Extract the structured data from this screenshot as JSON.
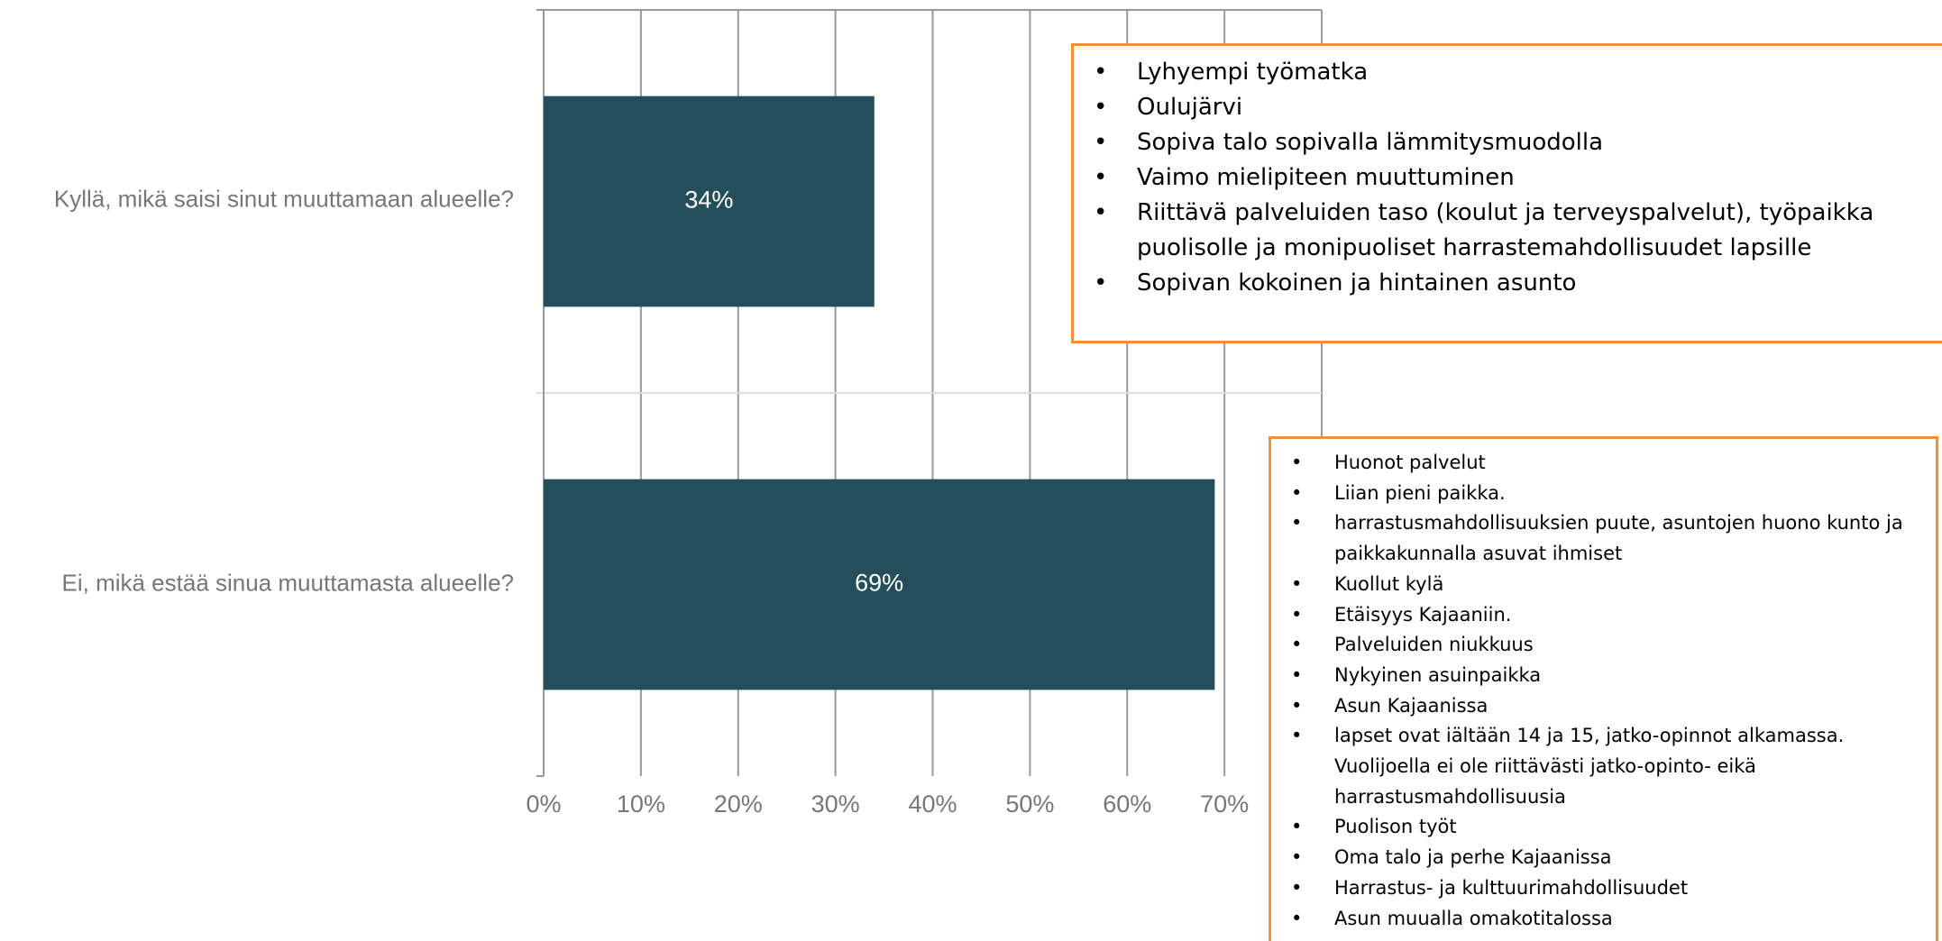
{
  "chart_data": {
    "type": "bar",
    "orientation": "horizontal",
    "categories": [
      "Kyllä, mikä saisi sinut muuttamaan alueelle?",
      "Ei, mikä estää sinua muuttamasta alueelle?"
    ],
    "values": [
      34,
      69
    ],
    "value_labels": [
      "34%",
      "69%"
    ],
    "color": "#244e5a",
    "xlim": [
      0,
      80
    ],
    "xticks": [
      {
        "value": 0,
        "label": "0%"
      },
      {
        "value": 10,
        "label": "10%"
      },
      {
        "value": 20,
        "label": "20%"
      },
      {
        "value": 30,
        "label": "30%"
      },
      {
        "value": 40,
        "label": "40%"
      },
      {
        "value": 50,
        "label": "50%"
      },
      {
        "value": 60,
        "label": "60%"
      },
      {
        "value": 70,
        "label": "70%"
      }
    ],
    "grid": true
  },
  "notes": [
    {
      "items": [
        "Lyhyempi työmatka",
        "Oulujärvi",
        "Sopiva talo sopivalla lämmitysmuodolla",
        "Vaimo mielipiteen muuttuminen",
        "Riittävä palveluiden taso (koulut ja terveyspalvelut), työpaikka puolisolle ja monipuoliset harrastemahdollisuudet lapsille",
        "Sopivan kokoinen ja hintainen asunto"
      ]
    },
    {
      "items": [
        "Huonot palvelut",
        "Liian pieni paikka.",
        "harrastusmahdollisuuksien puute, asuntojen huono kunto ja paikkakunnalla asuvat ihmiset",
        "Kuollut kylä",
        "Etäisyys Kajaaniin.",
        "Palveluiden niukkuus",
        "Nykyinen asuinpaikka",
        "Asun Kajaanissa",
        "lapset ovat iältään 14 ja 15, jatko-opinnot alkamassa. Vuolijoella ei ole riittävästi jatko-opinto- eikä harrastusmahdollisuusia",
        "Puolison työt",
        "Oma talo ja perhe Kajaanissa",
        "Harrastus- ja kulttuurimahdollisuudet",
        "Asun muualla omakotitalossa"
      ]
    }
  ]
}
